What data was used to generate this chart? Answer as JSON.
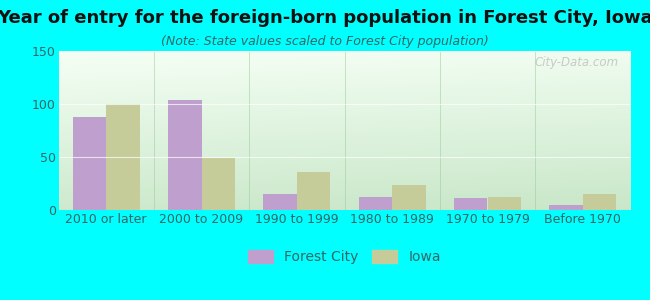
{
  "title": "Year of entry for the foreign-born population in Forest City, Iowa",
  "subtitle": "(Note: State values scaled to Forest City population)",
  "categories": [
    "2010 or later",
    "2000 to 2009",
    "1990 to 1999",
    "1980 to 1989",
    "1970 to 1979",
    "Before 1970"
  ],
  "forest_city_values": [
    88,
    104,
    15,
    12,
    11,
    5
  ],
  "iowa_values": [
    100,
    49,
    36,
    24,
    12,
    15
  ],
  "forest_city_color": "#bf9fce",
  "iowa_color": "#c5cc99",
  "background_color": "#00ffff",
  "ylim": [
    0,
    150
  ],
  "yticks": [
    0,
    50,
    100,
    150
  ],
  "bar_width": 0.35,
  "title_fontsize": 13,
  "subtitle_fontsize": 9,
  "tick_fontsize": 9,
  "legend_labels": [
    "Forest City",
    "Iowa"
  ],
  "watermark": "City-Data.com",
  "tick_color": "#336666",
  "title_color": "#111111"
}
